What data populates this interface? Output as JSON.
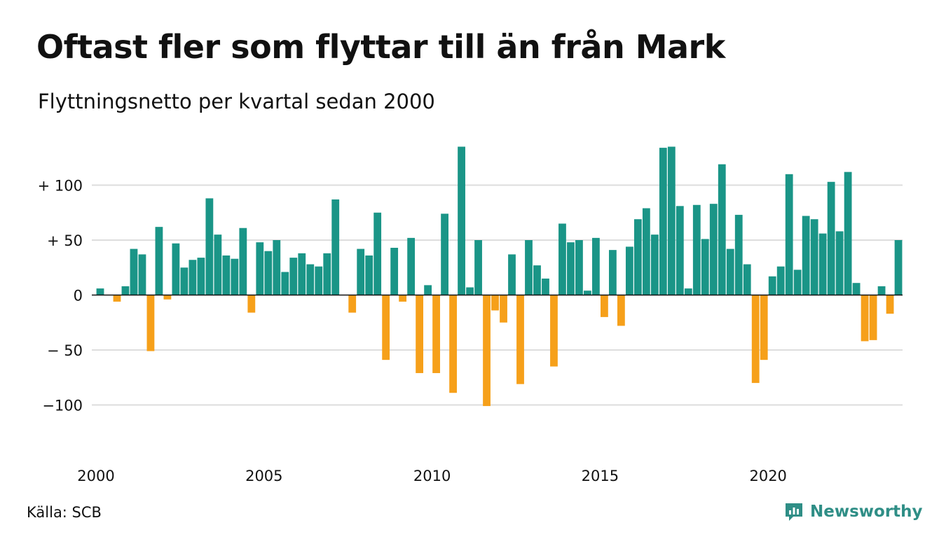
{
  "header": {
    "title": "Oftast fler som flyttar till än från Mark",
    "subtitle": "Flyttningsnetto per kvartal sedan 2000"
  },
  "footer": {
    "source": "Källa: SCB",
    "brand": "Newsworthy"
  },
  "colors": {
    "positive": "#1a9587",
    "negative": "#f6a01a",
    "grid": "#dddddd",
    "zero": "#111111",
    "brand": "#2f8e86"
  },
  "brand_icon": "bar-chart-speech-bubble-icon",
  "chart_data": {
    "type": "bar",
    "xlabel": "",
    "ylabel": "",
    "ylim": [
      -130,
      140
    ],
    "yticks": [
      {
        "value": 100,
        "label": "+ 100"
      },
      {
        "value": 50,
        "label": "+  50"
      },
      {
        "value": 0,
        "label": "0"
      },
      {
        "value": -50,
        "label": "− 50"
      },
      {
        "value": -100,
        "label": "−100"
      }
    ],
    "xticks": [
      "2000",
      "2005",
      "2010",
      "2015",
      "2020"
    ],
    "grid": true,
    "start": "2000 Q1",
    "values": [
      6,
      0,
      -6,
      8,
      42,
      37,
      -51,
      62,
      -4,
      47,
      25,
      32,
      34,
      88,
      55,
      36,
      33,
      61,
      -16,
      48,
      40,
      50,
      21,
      34,
      38,
      28,
      26,
      38,
      87,
      0,
      -16,
      42,
      36,
      75,
      -59,
      43,
      -6,
      52,
      -71,
      9,
      -71,
      74,
      -89,
      135,
      7,
      50,
      -101,
      -14,
      -25,
      37,
      -81,
      50,
      27,
      15,
      -65,
      65,
      48,
      50,
      4,
      52,
      -20,
      41,
      -28,
      44,
      69,
      79,
      55,
      134,
      135,
      81,
      6,
      82,
      51,
      83,
      119,
      42,
      73,
      28,
      -80,
      -59,
      17,
      26,
      110,
      23,
      72,
      69,
      56,
      103,
      58,
      112,
      11,
      -42,
      -41,
      8,
      -17,
      50
    ]
  }
}
